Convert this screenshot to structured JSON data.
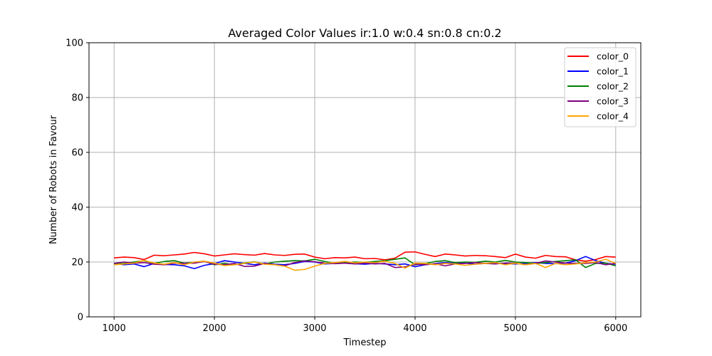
{
  "chart_data": {
    "type": "line",
    "title": "Averaged Color Values ir:1.0 w:0.4 sn:0.8 cn:0.2",
    "xlabel": "Timestep",
    "ylabel": "Number of Robots in Favour",
    "xlim": [
      750,
      6250
    ],
    "ylim": [
      0,
      100
    ],
    "xticks": [
      1000,
      2000,
      3000,
      4000,
      5000,
      6000
    ],
    "yticks": [
      0,
      20,
      40,
      60,
      80,
      100
    ],
    "grid": true,
    "legend_position": "top-right",
    "x": [
      1000,
      1100,
      1200,
      1300,
      1400,
      1500,
      1600,
      1700,
      1800,
      1900,
      2000,
      2100,
      2200,
      2300,
      2400,
      2500,
      2600,
      2700,
      2800,
      2900,
      3000,
      3100,
      3200,
      3300,
      3400,
      3500,
      3600,
      3700,
      3800,
      3900,
      4000,
      4100,
      4200,
      4300,
      4400,
      4500,
      4600,
      4700,
      4800,
      4900,
      5000,
      5100,
      5200,
      5300,
      5400,
      5500,
      5600,
      5700,
      5800,
      5900,
      6000
    ],
    "series": [
      {
        "name": "color_0",
        "color": "#ff0000",
        "values": [
          21.5,
          21.8,
          21.6,
          20.9,
          22.5,
          22.3,
          22.6,
          22.9,
          23.5,
          23.0,
          22.2,
          22.6,
          23.0,
          22.7,
          22.5,
          23.1,
          22.6,
          22.4,
          22.8,
          22.9,
          21.8,
          21.2,
          21.6,
          21.5,
          21.8,
          21.2,
          21.3,
          20.8,
          21.4,
          23.6,
          23.7,
          22.8,
          22.0,
          22.9,
          22.6,
          22.2,
          22.4,
          22.3,
          22.0,
          21.6,
          22.9,
          21.8,
          21.4,
          22.4,
          22.0,
          21.9,
          20.8,
          20.3,
          20.9,
          22.0,
          21.8
        ]
      },
      {
        "name": "color_1",
        "color": "#0000ff",
        "values": [
          19.5,
          19.0,
          19.3,
          18.3,
          19.5,
          19.1,
          19.0,
          18.6,
          17.6,
          18.8,
          19.4,
          20.5,
          20.0,
          19.5,
          19.0,
          19.6,
          19.2,
          19.0,
          19.5,
          20.2,
          20.0,
          19.3,
          19.5,
          19.6,
          19.4,
          19.2,
          19.5,
          19.3,
          19.0,
          19.3,
          18.3,
          19.0,
          19.4,
          19.8,
          19.5,
          19.6,
          19.2,
          19.5,
          19.6,
          19.4,
          19.3,
          19.5,
          19.8,
          19.5,
          19.4,
          19.6,
          20.5,
          22.0,
          20.5,
          19.5,
          19.2
        ]
      },
      {
        "name": "color_2",
        "color": "#008000",
        "values": [
          19.2,
          19.5,
          20.0,
          20.5,
          19.5,
          20.2,
          20.5,
          19.6,
          19.9,
          20.3,
          19.0,
          19.5,
          19.0,
          19.6,
          20.1,
          19.2,
          20.0,
          20.3,
          20.5,
          20.4,
          21.0,
          20.2,
          19.5,
          19.8,
          20.0,
          19.9,
          20.2,
          20.5,
          21.0,
          21.5,
          19.0,
          19.4,
          20.2,
          20.5,
          19.8,
          20.0,
          19.9,
          20.3,
          20.0,
          20.6,
          20.0,
          19.8,
          19.5,
          19.8,
          20.2,
          20.5,
          20.8,
          18.0,
          19.5,
          19.6,
          18.6
        ]
      },
      {
        "name": "color_3",
        "color": "#800080",
        "values": [
          19.5,
          20.0,
          19.6,
          19.8,
          19.2,
          19.0,
          19.6,
          19.5,
          19.6,
          20.2,
          19.2,
          19.0,
          19.5,
          18.4,
          18.5,
          19.5,
          19.0,
          18.6,
          19.8,
          20.4,
          20.1,
          19.6,
          19.4,
          19.6,
          19.3,
          19.6,
          19.3,
          19.5,
          18.0,
          18.2,
          19.2,
          19.0,
          19.4,
          18.6,
          19.3,
          19.5,
          19.8,
          19.5,
          19.3,
          19.6,
          19.6,
          19.0,
          19.5,
          20.4,
          20.0,
          19.6,
          19.5,
          19.5,
          19.8,
          19.0,
          19.5
        ]
      },
      {
        "name": "color_4",
        "color": "#ffa500",
        "values": [
          19.0,
          19.3,
          19.6,
          20.6,
          19.6,
          19.2,
          19.8,
          19.0,
          20.0,
          20.3,
          19.6,
          18.7,
          19.0,
          19.5,
          20.0,
          19.2,
          19.0,
          18.5,
          17.0,
          17.3,
          18.5,
          19.5,
          19.8,
          20.2,
          19.7,
          20.0,
          19.8,
          20.3,
          19.5,
          17.8,
          19.6,
          19.5,
          19.0,
          19.5,
          19.3,
          18.8,
          19.2,
          19.5,
          19.8,
          19.0,
          19.6,
          19.0,
          19.5,
          18.0,
          19.5,
          19.0,
          19.3,
          19.8,
          20.0,
          21.0,
          19.5
        ]
      }
    ]
  }
}
